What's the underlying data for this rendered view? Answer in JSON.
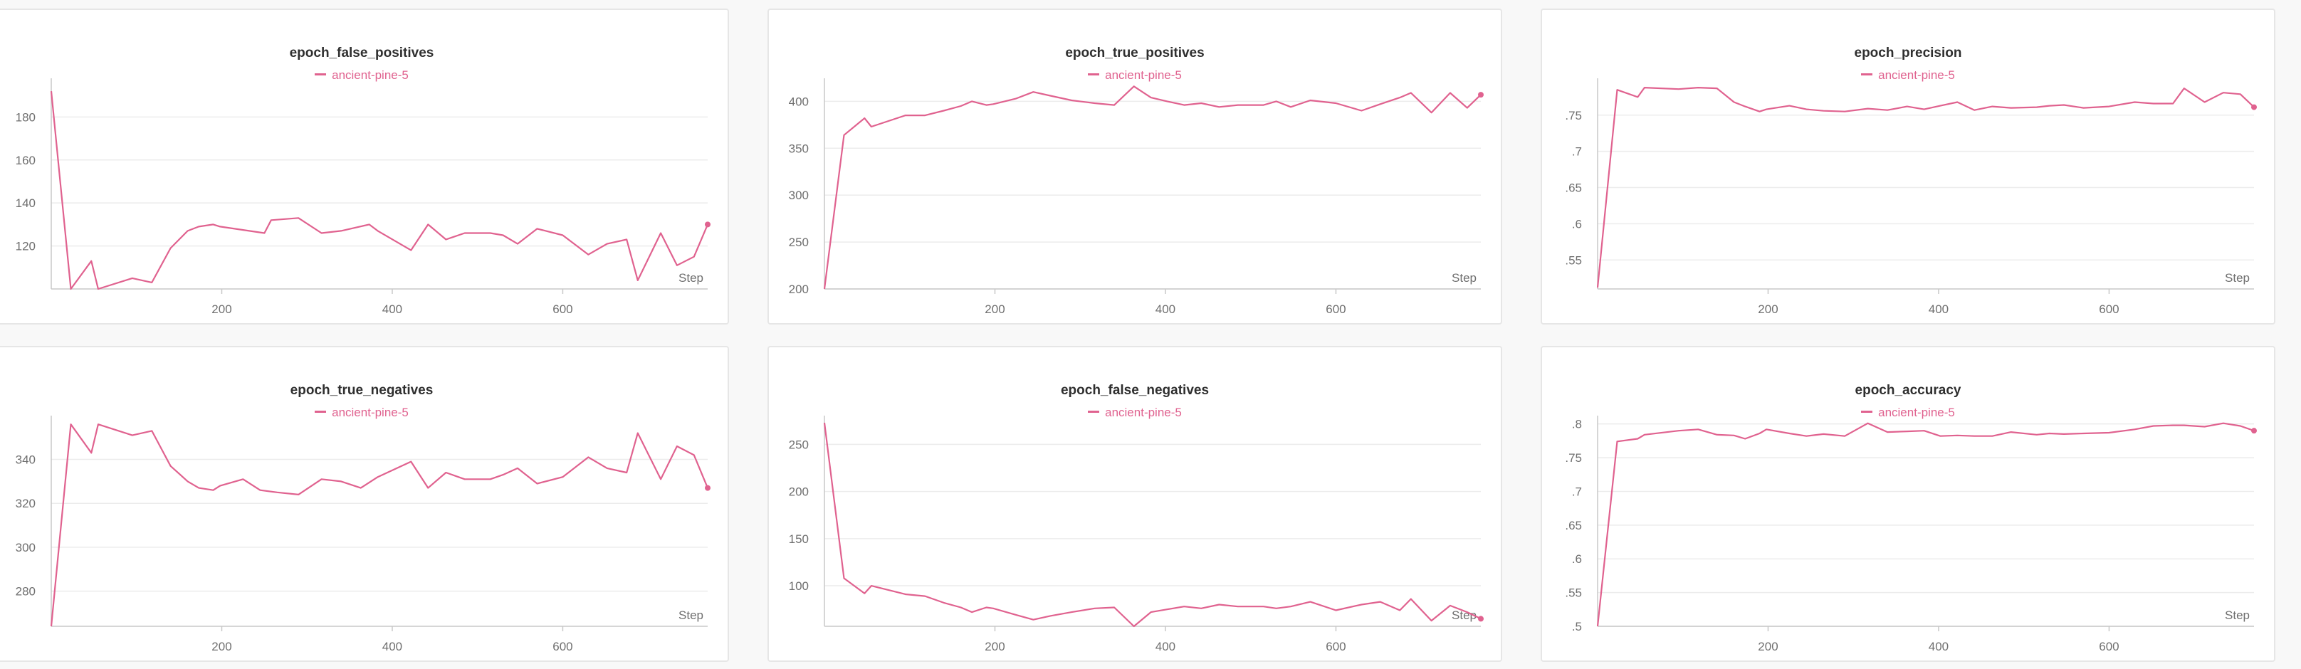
{
  "run": {
    "name": "ancient-pine-5",
    "color": "#e0628f"
  },
  "chart_data": [
    {
      "type": "line",
      "title": "epoch_false_positives",
      "xlabel": "Step",
      "xlim": [
        0,
        770
      ],
      "ylim": [
        100,
        196
      ],
      "xticks": [
        200,
        400,
        600
      ],
      "yticks": [
        120,
        140,
        160,
        180
      ],
      "series": [
        {
          "name": "ancient-pine-5",
          "x": [
            0,
            23,
            47,
            55,
            95,
            118,
            140,
            160,
            173,
            190,
            198,
            250,
            258,
            290,
            317,
            340,
            373,
            383,
            422,
            442,
            463,
            485,
            515,
            530,
            547,
            570,
            600,
            630,
            652,
            675,
            688,
            715,
            734,
            754,
            770
          ],
          "y": [
            192,
            100,
            113,
            100,
            105,
            103,
            119,
            127,
            129,
            130,
            129,
            126,
            132,
            133,
            126,
            127,
            130,
            127,
            118,
            130,
            123,
            126,
            126,
            125,
            121,
            128,
            125,
            116,
            121,
            123,
            104,
            126,
            111,
            115,
            130
          ]
        }
      ]
    },
    {
      "type": "line",
      "title": "epoch_true_positives",
      "xlabel": "Step",
      "xlim": [
        0,
        770
      ],
      "ylim": [
        200,
        420
      ],
      "xticks": [
        200,
        400,
        600
      ],
      "yticks": [
        200,
        250,
        300,
        350,
        400
      ],
      "series": [
        {
          "name": "ancient-pine-5",
          "x": [
            0,
            23,
            47,
            55,
            95,
            118,
            140,
            160,
            173,
            190,
            198,
            225,
            245,
            265,
            290,
            317,
            340,
            363,
            383,
            402,
            422,
            442,
            463,
            485,
            515,
            530,
            547,
            570,
            600,
            630,
            652,
            675,
            688,
            712,
            734,
            754,
            770
          ],
          "y": [
            200,
            364,
            382,
            373,
            385,
            385,
            390,
            395,
            400,
            396,
            397,
            403,
            410,
            406,
            401,
            398,
            396,
            416,
            404,
            400,
            396,
            398,
            394,
            396,
            396,
            400,
            394,
            401,
            398,
            390,
            397,
            404,
            409,
            388,
            409,
            393,
            407
          ]
        }
      ]
    },
    {
      "type": "line",
      "title": "epoch_precision",
      "xlabel": "Step",
      "xlim": [
        0,
        770
      ],
      "ylim": [
        0.51,
        0.795
      ],
      "xticks": [
        200,
        400,
        600
      ],
      "yticks": [
        0.55,
        0.6,
        0.65,
        0.7,
        0.75
      ],
      "series": [
        {
          "name": "ancient-pine-5",
          "x": [
            0,
            23,
            47,
            55,
            95,
            118,
            140,
            160,
            173,
            190,
            198,
            225,
            245,
            265,
            290,
            317,
            340,
            363,
            383,
            402,
            422,
            442,
            463,
            485,
            515,
            530,
            547,
            570,
            600,
            630,
            652,
            675,
            688,
            712,
            734,
            754,
            770
          ],
          "y": [
            0.512,
            0.785,
            0.775,
            0.788,
            0.786,
            0.788,
            0.787,
            0.768,
            0.762,
            0.755,
            0.758,
            0.763,
            0.758,
            0.756,
            0.755,
            0.759,
            0.757,
            0.762,
            0.758,
            0.763,
            0.768,
            0.757,
            0.762,
            0.76,
            0.761,
            0.763,
            0.764,
            0.76,
            0.762,
            0.768,
            0.766,
            0.766,
            0.787,
            0.768,
            0.781,
            0.779,
            0.761
          ]
        }
      ]
    },
    {
      "type": "line",
      "title": "epoch_true_negatives",
      "xlabel": "Step",
      "xlim": [
        0,
        770
      ],
      "ylim": [
        264,
        358
      ],
      "xticks": [
        200,
        400,
        600
      ],
      "yticks": [
        280,
        300,
        320,
        340
      ],
      "series": [
        {
          "name": "ancient-pine-5",
          "x": [
            0,
            23,
            47,
            55,
            95,
            118,
            140,
            160,
            173,
            190,
            198,
            225,
            245,
            265,
            290,
            317,
            340,
            363,
            383,
            422,
            442,
            463,
            485,
            515,
            530,
            547,
            570,
            600,
            630,
            652,
            675,
            688,
            715,
            734,
            754,
            770
          ],
          "y": [
            264,
            356,
            343,
            356,
            351,
            353,
            337,
            330,
            327,
            326,
            328,
            331,
            326,
            325,
            324,
            331,
            330,
            327,
            332,
            339,
            327,
            334,
            331,
            331,
            333,
            336,
            329,
            332,
            341,
            336,
            334,
            352,
            331,
            346,
            342,
            327
          ]
        }
      ]
    },
    {
      "type": "line",
      "title": "epoch_false_negatives",
      "xlabel": "Step",
      "xlim": [
        0,
        770
      ],
      "ylim": [
        57,
        276
      ],
      "xticks": [
        200,
        400,
        600
      ],
      "yticks": [
        100,
        150,
        200,
        250
      ],
      "series": [
        {
          "name": "ancient-pine-5",
          "x": [
            0,
            23,
            47,
            55,
            95,
            118,
            140,
            160,
            173,
            190,
            198,
            225,
            245,
            265,
            290,
            317,
            340,
            363,
            383,
            402,
            422,
            442,
            463,
            485,
            515,
            530,
            547,
            570,
            600,
            630,
            652,
            675,
            688,
            712,
            734,
            754,
            770
          ],
          "y": [
            273,
            108,
            92,
            100,
            91,
            89,
            82,
            77,
            72,
            77,
            76,
            69,
            64,
            68,
            72,
            76,
            77,
            57,
            72,
            75,
            78,
            76,
            80,
            78,
            78,
            76,
            78,
            83,
            74,
            80,
            83,
            74,
            86,
            63,
            79,
            72,
            65
          ]
        }
      ]
    },
    {
      "type": "line",
      "title": "epoch_accuracy",
      "xlabel": "Step",
      "xlim": [
        0,
        770
      ],
      "ylim": [
        0.5,
        0.806
      ],
      "xticks": [
        200,
        400,
        600
      ],
      "yticks": [
        0.5,
        0.55,
        0.6,
        0.65,
        0.7,
        0.75,
        0.8
      ],
      "series": [
        {
          "name": "ancient-pine-5",
          "x": [
            0,
            23,
            47,
            55,
            95,
            118,
            140,
            160,
            173,
            190,
            198,
            225,
            245,
            265,
            290,
            317,
            340,
            363,
            383,
            402,
            422,
            442,
            463,
            485,
            515,
            530,
            547,
            570,
            600,
            630,
            652,
            675,
            688,
            712,
            734,
            754,
            770
          ],
          "y": [
            0.5,
            0.774,
            0.778,
            0.784,
            0.79,
            0.792,
            0.784,
            0.783,
            0.778,
            0.786,
            0.792,
            0.786,
            0.782,
            0.785,
            0.782,
            0.801,
            0.788,
            0.789,
            0.79,
            0.782,
            0.783,
            0.782,
            0.782,
            0.788,
            0.784,
            0.786,
            0.785,
            0.786,
            0.787,
            0.792,
            0.797,
            0.798,
            0.798,
            0.796,
            0.801,
            0.797,
            0.79
          ]
        }
      ]
    }
  ]
}
